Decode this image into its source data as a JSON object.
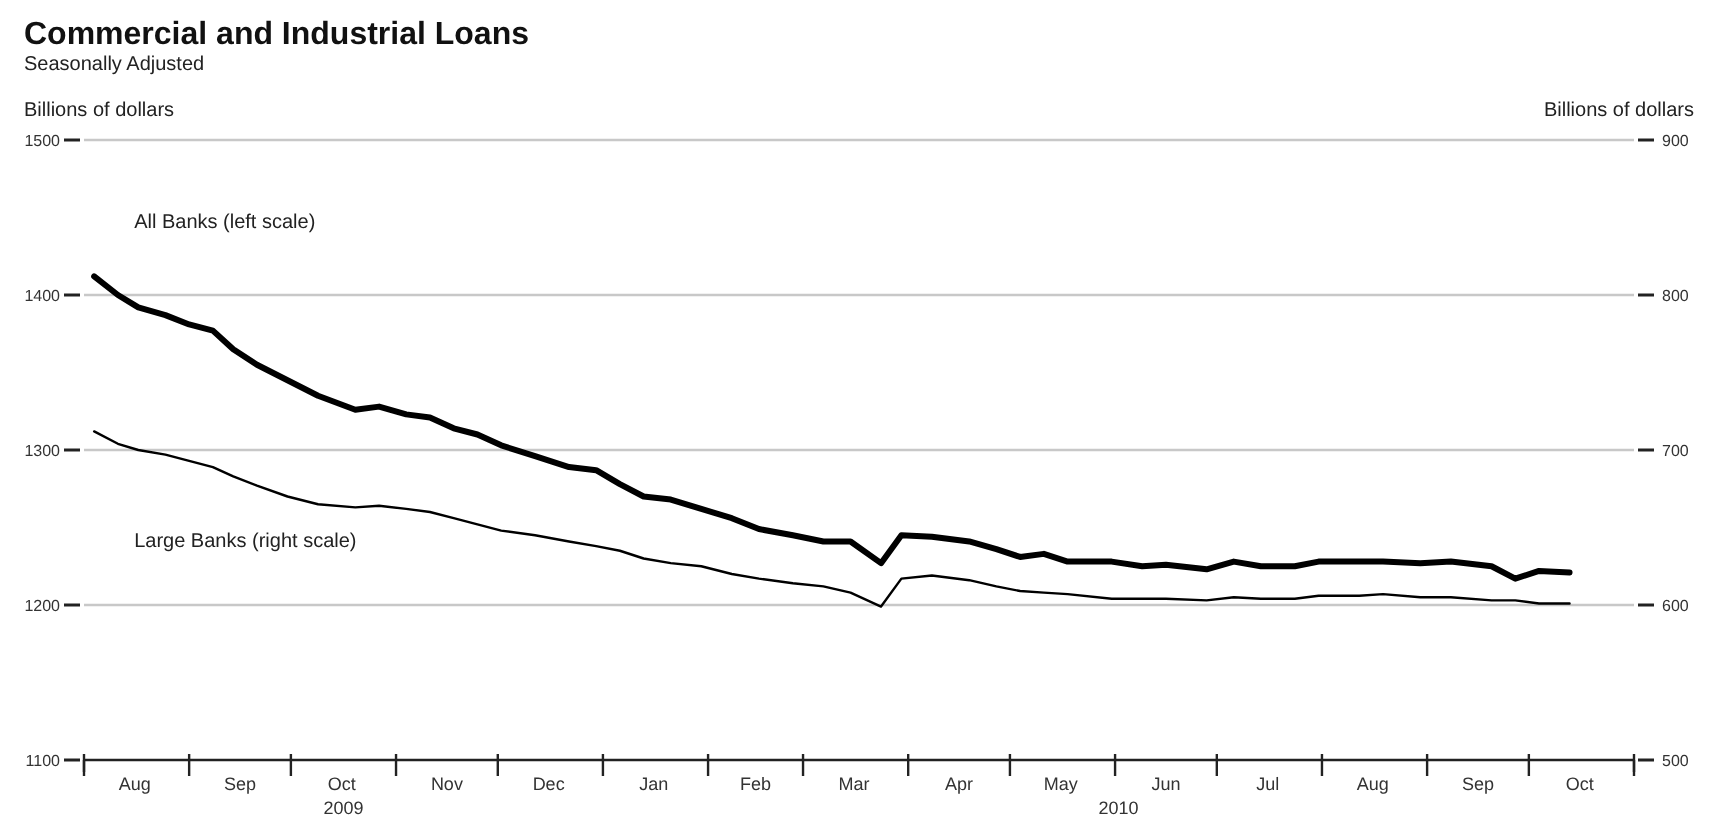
{
  "chart_data": {
    "type": "line",
    "title": "Commercial and Industrial Loans",
    "subtitle": "Seasonally Adjusted",
    "ylabel": "Billions of dollars",
    "y2label": "Billions of dollars",
    "xlim": [
      "2009-08-01",
      "2010-11-01"
    ],
    "xticks": [
      {
        "value": "2009-08-01",
        "label": null
      },
      {
        "value": "2009-08-16",
        "label": "Aug"
      },
      {
        "value": "2009-09-01",
        "label": null
      },
      {
        "value": "2009-09-16",
        "label": "Sep"
      },
      {
        "value": "2009-10-01",
        "label": null
      },
      {
        "value": "2009-10-16",
        "label": "Oct"
      },
      {
        "value": "2009-11-01",
        "label": null
      },
      {
        "value": "2009-11-16",
        "label": "Nov"
      },
      {
        "value": "2009-12-01",
        "label": null
      },
      {
        "value": "2009-12-16",
        "label": "Dec"
      },
      {
        "value": "2010-01-01",
        "label": null
      },
      {
        "value": "2010-01-16",
        "label": "Jan"
      },
      {
        "value": "2010-02-01",
        "label": null
      },
      {
        "value": "2010-02-15",
        "label": "Feb"
      },
      {
        "value": "2010-03-01",
        "label": null
      },
      {
        "value": "2010-03-16",
        "label": "Mar"
      },
      {
        "value": "2010-04-01",
        "label": null
      },
      {
        "value": "2010-04-16",
        "label": "Apr"
      },
      {
        "value": "2010-05-01",
        "label": null
      },
      {
        "value": "2010-05-16",
        "label": "May"
      },
      {
        "value": "2010-06-01",
        "label": null
      },
      {
        "value": "2010-06-16",
        "label": "Jun"
      },
      {
        "value": "2010-07-01",
        "label": null
      },
      {
        "value": "2010-07-16",
        "label": "Jul"
      },
      {
        "value": "2010-08-01",
        "label": null
      },
      {
        "value": "2010-08-16",
        "label": "Aug"
      },
      {
        "value": "2010-09-01",
        "label": null
      },
      {
        "value": "2010-09-16",
        "label": "Sep"
      },
      {
        "value": "2010-10-01",
        "label": null
      },
      {
        "value": "2010-10-16",
        "label": "Oct"
      },
      {
        "value": "2010-11-01",
        "label": null
      }
    ],
    "annotations": [
      "2009",
      "2010"
    ],
    "ylim": [
      1100,
      1500
    ],
    "yticks": [
      1100,
      1200,
      1300,
      1400,
      1500
    ],
    "y2lim": [
      500,
      900
    ],
    "y2ticks": [
      500,
      600,
      700,
      800,
      900
    ],
    "grid": "y",
    "x": [
      "2009-08-04",
      "2009-08-11",
      "2009-08-17",
      "2009-08-25",
      "2009-09-01",
      "2009-09-08",
      "2009-09-14",
      "2009-09-21",
      "2009-09-30",
      "2009-10-09",
      "2009-10-20",
      "2009-10-27",
      "2009-11-04",
      "2009-11-11",
      "2009-11-18",
      "2009-11-25",
      "2009-12-02",
      "2009-12-12",
      "2009-12-22",
      "2009-12-30",
      "2010-01-06",
      "2010-01-13",
      "2010-01-21",
      "2010-01-30",
      "2010-02-08",
      "2010-02-16",
      "2010-02-26",
      "2010-03-07",
      "2010-03-15",
      "2010-03-24",
      "2010-03-30",
      "2010-04-08",
      "2010-04-19",
      "2010-04-27",
      "2010-05-04",
      "2010-05-11",
      "2010-05-18",
      "2010-05-31",
      "2010-06-09",
      "2010-06-16",
      "2010-06-28",
      "2010-07-06",
      "2010-07-14",
      "2010-07-24",
      "2010-07-31",
      "2010-08-12",
      "2010-08-19",
      "2010-08-30",
      "2010-09-08",
      "2010-09-20",
      "2010-09-27",
      "2010-10-04",
      "2010-10-13"
    ],
    "series": [
      {
        "name": "All Banks (left scale)",
        "color": "#000000",
        "axis": "y",
        "values": [
          1412,
          1400,
          1392,
          1387,
          1381,
          1377,
          1365,
          1355,
          1345,
          1335,
          1326,
          1328,
          1323,
          1321,
          1314,
          1310,
          1303,
          1296,
          1289,
          1287,
          1278,
          1270,
          1268,
          1262,
          1256,
          1249,
          1245,
          1241,
          1241,
          1227,
          1245,
          1244,
          1241,
          1236,
          1231,
          1233,
          1228,
          1228,
          1225,
          1226,
          1223,
          1228,
          1225,
          1225,
          1228,
          1228,
          1228,
          1227,
          1228,
          1225,
          1217,
          1222,
          1221
        ]
      },
      {
        "name": "Large Banks (right scale)",
        "color": "#000000",
        "axis": "y2",
        "values": [
          712,
          704,
          700,
          697,
          693,
          689,
          683,
          677,
          670,
          665,
          663,
          664,
          662,
          660,
          656,
          652,
          648,
          645,
          641,
          638,
          635,
          630,
          627,
          625,
          620,
          617,
          614,
          612,
          608,
          599,
          617,
          619,
          616,
          612,
          609,
          608,
          607,
          604,
          604,
          604,
          603,
          605,
          604,
          604,
          606,
          606,
          607,
          605,
          605,
          603,
          603,
          601,
          601
        ]
      }
    ]
  }
}
